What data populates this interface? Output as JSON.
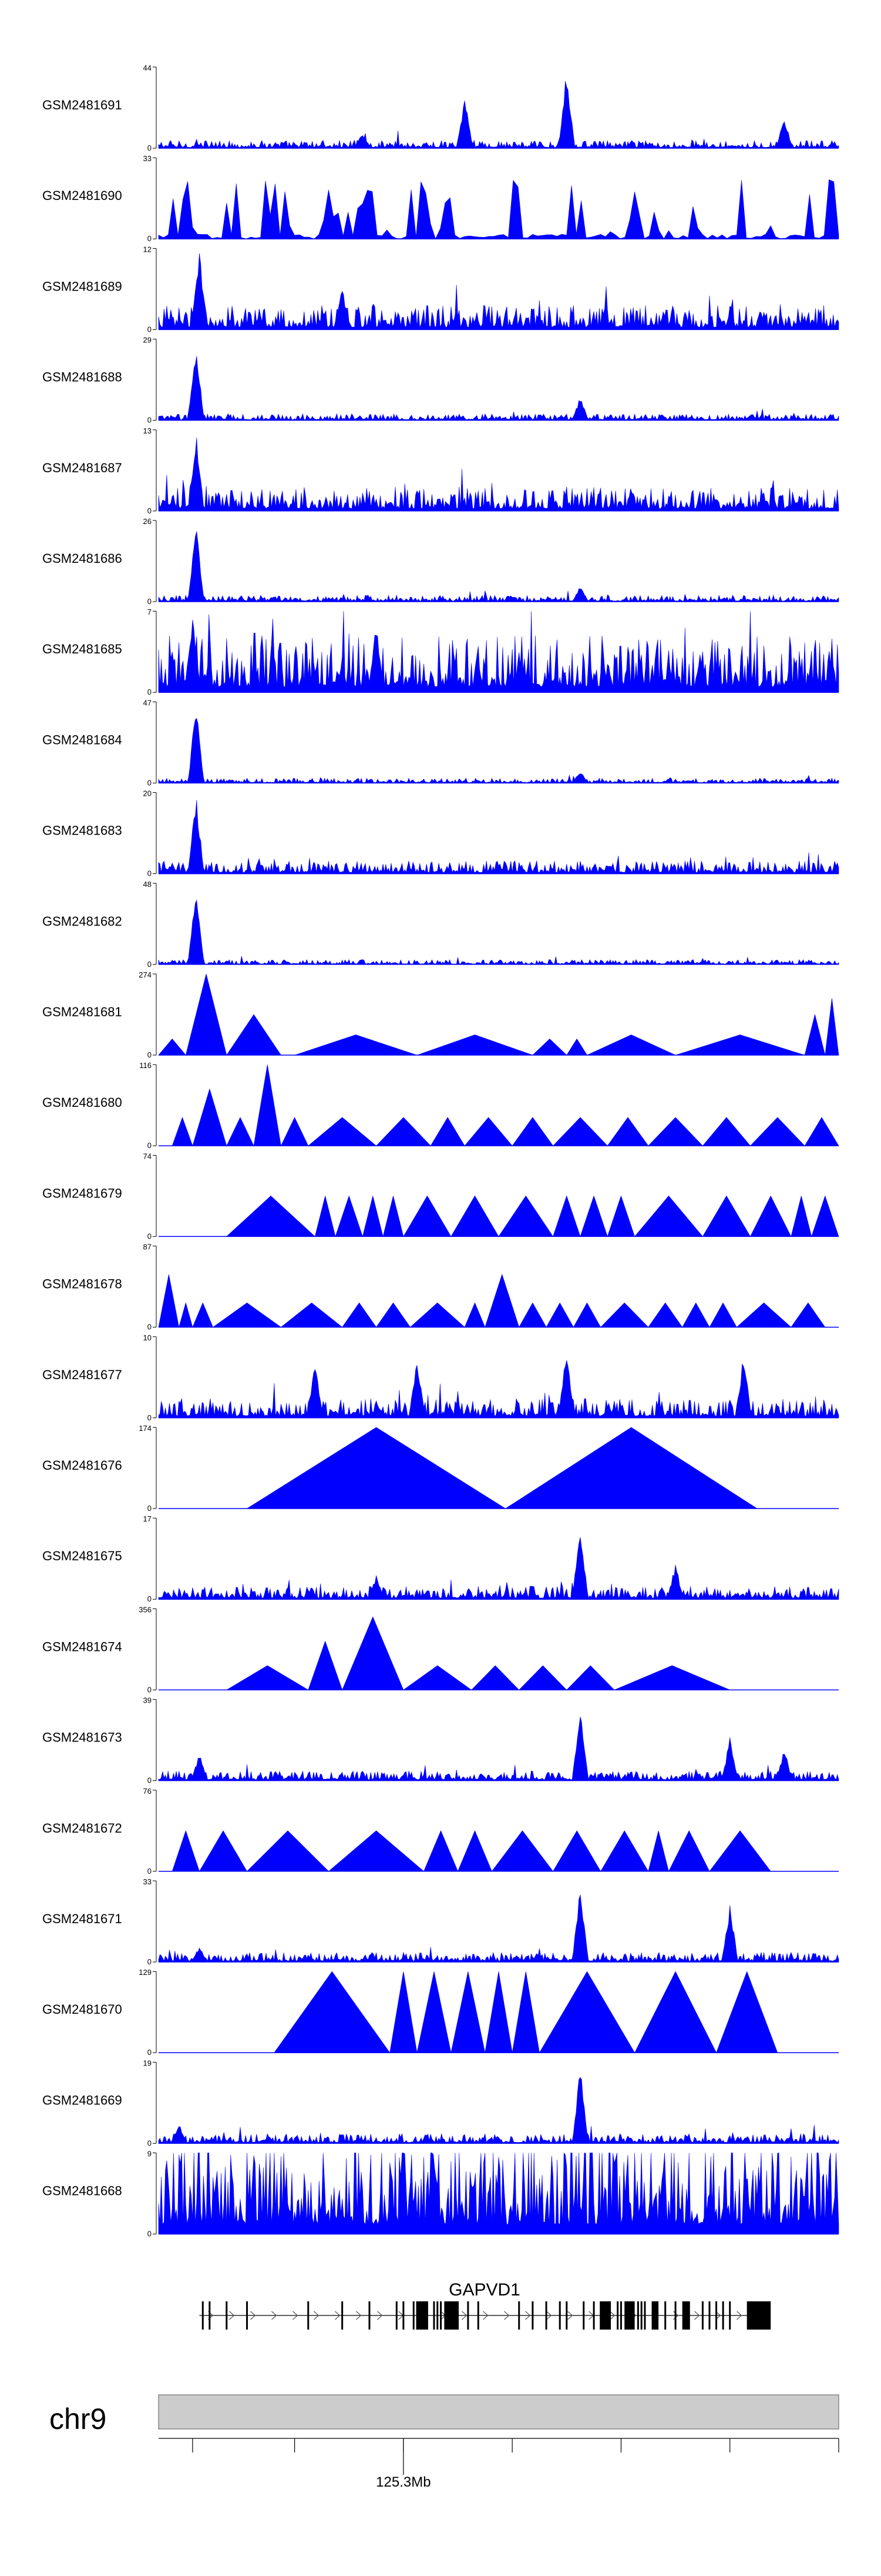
{
  "chart_data": {
    "type": "area",
    "title": "",
    "xlabel": "",
    "ylabel": "",
    "tracks": [
      {
        "name": "GSM2481691",
        "ymax": 44,
        "ymin": 0,
        "pattern": "dense",
        "base": 0.05,
        "peaks": [
          [
            0.45,
            0.65
          ],
          [
            0.6,
            1.0
          ],
          [
            0.92,
            0.4
          ],
          [
            0.3,
            0.2
          ]
        ]
      },
      {
        "name": "GSM2481690",
        "ymax": 33,
        "ymin": 0,
        "pattern": "spiky",
        "base": 0.0,
        "peaks": [
          [
            0.04,
            1.0
          ],
          [
            0.25,
            0.7
          ],
          [
            0.7,
            0.7
          ]
        ]
      },
      {
        "name": "GSM2481689",
        "ymax": 12,
        "ymin": 0,
        "pattern": "dense",
        "base": 0.15,
        "peaks": [
          [
            0.06,
            1.0
          ],
          [
            0.27,
            0.55
          ]
        ]
      },
      {
        "name": "GSM2481688",
        "ymax": 29,
        "ymin": 0,
        "pattern": "dense",
        "base": 0.04,
        "peaks": [
          [
            0.055,
            1.0
          ],
          [
            0.62,
            0.3
          ]
        ]
      },
      {
        "name": "GSM2481687",
        "ymax": 13,
        "ymin": 0,
        "pattern": "dense",
        "base": 0.15,
        "peaks": [
          [
            0.055,
            1.0
          ]
        ]
      },
      {
        "name": "GSM2481686",
        "ymax": 26,
        "ymin": 0,
        "pattern": "dense",
        "base": 0.04,
        "peaks": [
          [
            0.055,
            1.0
          ],
          [
            0.62,
            0.2
          ]
        ]
      },
      {
        "name": "GSM2481685",
        "ymax": 7,
        "ymin": 0,
        "pattern": "dense",
        "base": 0.35,
        "peaks": [
          [
            0.05,
            1.0
          ],
          [
            0.32,
            0.9
          ]
        ]
      },
      {
        "name": "GSM2481684",
        "ymax": 47,
        "ymin": 0,
        "pattern": "dense",
        "base": 0.03,
        "peaks": [
          [
            0.055,
            1.0
          ],
          [
            0.62,
            0.15
          ]
        ]
      },
      {
        "name": "GSM2481683",
        "ymax": 20,
        "ymin": 0,
        "pattern": "dense",
        "base": 0.08,
        "peaks": [
          [
            0.055,
            1.0
          ]
        ]
      },
      {
        "name": "GSM2481682",
        "ymax": 48,
        "ymin": 0,
        "pattern": "dense",
        "base": 0.03,
        "peaks": [
          [
            0.055,
            1.0
          ]
        ]
      },
      {
        "name": "GSM2481681",
        "ymax": 274,
        "ymin": 0,
        "pattern": "tri",
        "tris": [
          [
            0.0,
            0.04,
            0.2
          ],
          [
            0.04,
            0.1,
            1.0
          ],
          [
            0.1,
            0.18,
            0.5
          ],
          [
            0.2,
            0.38,
            0.25
          ],
          [
            0.38,
            0.55,
            0.25
          ],
          [
            0.55,
            0.6,
            0.2
          ],
          [
            0.6,
            0.63,
            0.2
          ],
          [
            0.63,
            0.76,
            0.25
          ],
          [
            0.76,
            0.95,
            0.25
          ],
          [
            0.95,
            0.98,
            0.5
          ],
          [
            0.98,
            1.0,
            0.7
          ]
        ]
      },
      {
        "name": "GSM2481680",
        "ymax": 116,
        "ymin": 0,
        "pattern": "tri",
        "tris": [
          [
            0.02,
            0.05,
            0.35
          ],
          [
            0.05,
            0.1,
            0.7
          ],
          [
            0.1,
            0.14,
            0.35
          ],
          [
            0.14,
            0.18,
            1.0
          ],
          [
            0.18,
            0.22,
            0.35
          ],
          [
            0.22,
            0.32,
            0.35
          ],
          [
            0.32,
            0.4,
            0.35
          ],
          [
            0.4,
            0.45,
            0.35
          ],
          [
            0.45,
            0.52,
            0.35
          ],
          [
            0.52,
            0.58,
            0.35
          ],
          [
            0.58,
            0.66,
            0.35
          ],
          [
            0.66,
            0.72,
            0.35
          ],
          [
            0.72,
            0.8,
            0.35
          ],
          [
            0.8,
            0.87,
            0.35
          ],
          [
            0.87,
            0.95,
            0.35
          ],
          [
            0.95,
            1.0,
            0.35
          ]
        ]
      },
      {
        "name": "GSM2481679",
        "ymax": 74,
        "ymin": 0,
        "pattern": "tri",
        "tris": [
          [
            0.1,
            0.23,
            0.5
          ],
          [
            0.23,
            0.26,
            0.5
          ],
          [
            0.26,
            0.3,
            0.5
          ],
          [
            0.3,
            0.33,
            0.5
          ],
          [
            0.33,
            0.36,
            0.5
          ],
          [
            0.36,
            0.43,
            0.5
          ],
          [
            0.43,
            0.5,
            0.5
          ],
          [
            0.5,
            0.58,
            0.5
          ],
          [
            0.58,
            0.62,
            0.5
          ],
          [
            0.62,
            0.66,
            0.5
          ],
          [
            0.66,
            0.7,
            0.5
          ],
          [
            0.7,
            0.8,
            0.5
          ],
          [
            0.8,
            0.87,
            0.5
          ],
          [
            0.87,
            0.93,
            0.5
          ],
          [
            0.93,
            0.96,
            0.5
          ],
          [
            0.96,
            1.0,
            0.5
          ]
        ]
      },
      {
        "name": "GSM2481678",
        "ymax": 87,
        "ymin": 0,
        "pattern": "tri",
        "tris": [
          [
            0.0,
            0.03,
            0.65
          ],
          [
            0.03,
            0.05,
            0.3
          ],
          [
            0.05,
            0.08,
            0.3
          ],
          [
            0.08,
            0.18,
            0.3
          ],
          [
            0.18,
            0.27,
            0.3
          ],
          [
            0.27,
            0.32,
            0.3
          ],
          [
            0.32,
            0.37,
            0.3
          ],
          [
            0.37,
            0.45,
            0.3
          ],
          [
            0.45,
            0.48,
            0.3
          ],
          [
            0.48,
            0.53,
            0.65
          ],
          [
            0.53,
            0.57,
            0.3
          ],
          [
            0.57,
            0.61,
            0.3
          ],
          [
            0.61,
            0.65,
            0.3
          ],
          [
            0.65,
            0.72,
            0.3
          ],
          [
            0.72,
            0.77,
            0.3
          ],
          [
            0.77,
            0.81,
            0.3
          ],
          [
            0.81,
            0.85,
            0.3
          ],
          [
            0.85,
            0.93,
            0.3
          ],
          [
            0.93,
            0.98,
            0.3
          ]
        ]
      },
      {
        "name": "GSM2481677",
        "ymax": 10,
        "ymin": 0,
        "pattern": "dense",
        "base": 0.12,
        "peaks": [
          [
            0.6,
            0.9
          ],
          [
            0.38,
            0.8
          ],
          [
            0.23,
            0.7
          ],
          [
            0.86,
            0.8
          ]
        ]
      },
      {
        "name": "GSM2481676",
        "ymax": 174,
        "ymin": 0,
        "pattern": "tri",
        "tris": [
          [
            0.13,
            0.51,
            1.0
          ],
          [
            0.51,
            0.88,
            1.0
          ]
        ]
      },
      {
        "name": "GSM2481675",
        "ymax": 17,
        "ymin": 0,
        "pattern": "dense",
        "base": 0.08,
        "peaks": [
          [
            0.62,
            0.95
          ],
          [
            0.76,
            0.45
          ],
          [
            0.32,
            0.3
          ]
        ]
      },
      {
        "name": "GSM2481674",
        "ymax": 356,
        "ymin": 0,
        "pattern": "tri",
        "tris": [
          [
            0.1,
            0.22,
            0.3
          ],
          [
            0.22,
            0.27,
            0.6
          ],
          [
            0.27,
            0.36,
            0.9
          ],
          [
            0.36,
            0.46,
            0.3
          ],
          [
            0.46,
            0.53,
            0.3
          ],
          [
            0.53,
            0.6,
            0.3
          ],
          [
            0.6,
            0.67,
            0.3
          ],
          [
            0.67,
            0.84,
            0.3
          ]
        ]
      },
      {
        "name": "GSM2481673",
        "ymax": 39,
        "ymin": 0,
        "pattern": "dense",
        "base": 0.06,
        "peaks": [
          [
            0.62,
            1.0
          ],
          [
            0.84,
            0.55
          ],
          [
            0.92,
            0.4
          ],
          [
            0.06,
            0.35
          ]
        ]
      },
      {
        "name": "GSM2481672",
        "ymax": 76,
        "ymin": 0,
        "pattern": "tri",
        "tris": [
          [
            0.02,
            0.06,
            0.5
          ],
          [
            0.06,
            0.13,
            0.5
          ],
          [
            0.13,
            0.25,
            0.5
          ],
          [
            0.25,
            0.39,
            0.5
          ],
          [
            0.39,
            0.44,
            0.5
          ],
          [
            0.44,
            0.49,
            0.5
          ],
          [
            0.49,
            0.58,
            0.5
          ],
          [
            0.58,
            0.65,
            0.5
          ],
          [
            0.65,
            0.72,
            0.5
          ],
          [
            0.72,
            0.75,
            0.5
          ],
          [
            0.75,
            0.81,
            0.5
          ],
          [
            0.81,
            0.9,
            0.5
          ]
        ]
      },
      {
        "name": "GSM2481671",
        "ymax": 33,
        "ymin": 0,
        "pattern": "dense",
        "base": 0.06,
        "peaks": [
          [
            0.62,
            0.95
          ],
          [
            0.84,
            0.75
          ],
          [
            0.06,
            0.2
          ]
        ]
      },
      {
        "name": "GSM2481670",
        "ymax": 129,
        "ymin": 0,
        "pattern": "tri",
        "tris": [
          [
            0.17,
            0.34,
            1.0
          ],
          [
            0.34,
            0.38,
            1.0
          ],
          [
            0.38,
            0.43,
            1.0
          ],
          [
            0.43,
            0.48,
            1.0
          ],
          [
            0.48,
            0.52,
            1.0
          ],
          [
            0.52,
            0.56,
            1.0
          ],
          [
            0.56,
            0.7,
            1.0
          ],
          [
            0.7,
            0.82,
            1.0
          ],
          [
            0.82,
            0.91,
            1.0
          ]
        ]
      },
      {
        "name": "GSM2481669",
        "ymax": 19,
        "ymin": 0,
        "pattern": "dense",
        "base": 0.06,
        "peaks": [
          [
            0.62,
            0.95
          ],
          [
            0.03,
            0.25
          ]
        ]
      },
      {
        "name": "GSM2481668",
        "ymax": 9,
        "ymin": 0,
        "pattern": "dense",
        "base": 0.6,
        "peaks": []
      }
    ],
    "gene": {
      "name": "GAPVD1",
      "strand": "+",
      "start": 0.06,
      "end": 0.895,
      "exons": [
        0.065,
        0.075,
        0.1,
        0.13,
        0.22,
        0.27,
        0.31,
        0.35,
        0.36,
        0.375,
        0.38,
        0.385,
        0.395,
        0.405,
        0.41,
        0.415,
        0.44,
        0.455,
        0.47,
        0.53,
        0.55,
        0.57,
        0.59,
        0.6,
        0.625,
        0.64,
        0.65,
        0.66,
        0.675,
        0.68,
        0.69,
        0.705,
        0.71,
        0.715,
        0.73,
        0.745,
        0.76,
        0.775,
        0.78,
        0.8,
        0.81,
        0.82,
        0.83,
        0.84
      ],
      "thick_exons": [
        [
          0.38,
          0.395
        ],
        [
          0.42,
          0.44
        ],
        [
          0.65,
          0.665
        ],
        [
          0.685,
          0.7
        ],
        [
          0.725,
          0.735
        ],
        [
          0.77,
          0.78
        ],
        [
          0.865,
          0.9
        ]
      ]
    },
    "chromosome": "chr9",
    "axis": {
      "tick_positions": [
        0.05,
        0.2,
        0.36,
        0.52,
        0.68,
        0.84,
        1.0
      ],
      "labeled_tick": {
        "position": 0.36,
        "label": "125.3Mb"
      }
    }
  },
  "colors": {
    "signal": "#0000ff",
    "ideogram_fill": "#cccccc",
    "ideogram_stroke": "#888888",
    "text": "#000000",
    "gene": "#000000"
  }
}
